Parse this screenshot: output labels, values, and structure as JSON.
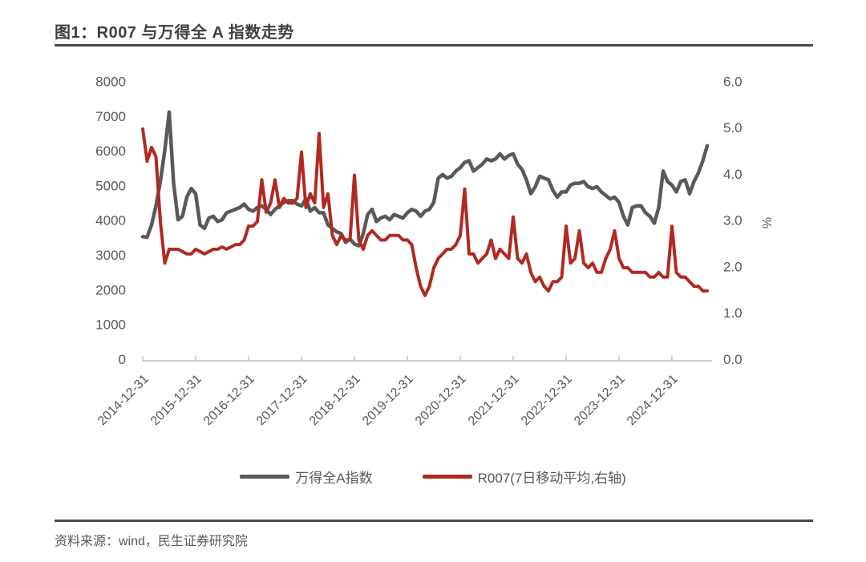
{
  "title": "图1：R007 与万得全 A 指数走势",
  "source": "资料来源：wind，民生证券研究院",
  "colors": {
    "index_line": "#595959",
    "r007_line": "#B02A21",
    "axis_line": "#c0c0c0",
    "axis_text": "#595959",
    "title_text": "#3f3f3f"
  },
  "legend": {
    "items": [
      {
        "label": "万得全A指数",
        "color": "#595959"
      },
      {
        "label": "R007(7日移动平均,右轴)",
        "color": "#B02A21"
      }
    ]
  },
  "chart_data": {
    "type": "line",
    "title": "图1：R007 与万得全 A 指数走势",
    "grid": false,
    "legend_position": "bottom",
    "x_unit": "month",
    "x_start": "2014-12",
    "x_tick_labels": [
      "2014-12-31",
      "2015-12-31",
      "2016-12-31",
      "2017-12-31",
      "2018-12-31",
      "2019-12-31",
      "2020-12-31",
      "2021-12-31",
      "2022-12-31",
      "2023-12-31",
      "2024-12-31"
    ],
    "left_axis": {
      "min": 0,
      "max": 8000,
      "tick_labels": [
        "0",
        "1000",
        "2000",
        "3000",
        "4000",
        "5000",
        "6000",
        "7000",
        "8000"
      ]
    },
    "right_axis": {
      "min": 0,
      "max": 6,
      "label": "%",
      "tick_labels": [
        "0.0",
        "1.0",
        "2.0",
        "3.0",
        "4.0",
        "5.0",
        "6.0"
      ]
    },
    "series": [
      {
        "name": "万得全A指数",
        "axis": "left",
        "color": "#595959",
        "values": [
          3560,
          3550,
          3900,
          4450,
          5150,
          6050,
          7150,
          5100,
          4050,
          4150,
          4700,
          4950,
          4800,
          3900,
          3800,
          4100,
          4150,
          4000,
          4050,
          4250,
          4300,
          4350,
          4400,
          4500,
          4350,
          4300,
          4400,
          4450,
          4350,
          4200,
          4350,
          4450,
          4550,
          4600,
          4600,
          4500,
          4450,
          4650,
          4300,
          4400,
          4250,
          4250,
          3900,
          3800,
          3700,
          3650,
          3400,
          3500,
          3350,
          3300,
          3650,
          4200,
          4350,
          4000,
          4100,
          4150,
          4050,
          4200,
          4150,
          4100,
          4250,
          4350,
          4300,
          4150,
          4300,
          4350,
          4550,
          5250,
          5350,
          5250,
          5300,
          5450,
          5550,
          5700,
          5750,
          5450,
          5550,
          5650,
          5800,
          5750,
          5800,
          5950,
          5800,
          5900,
          5950,
          5650,
          5500,
          5200,
          4800,
          5000,
          5300,
          5250,
          5200,
          4900,
          4700,
          4850,
          4850,
          5050,
          5100,
          5100,
          5150,
          5000,
          4950,
          5000,
          4850,
          4750,
          4650,
          4700,
          4550,
          4150,
          3900,
          4400,
          4450,
          4450,
          4250,
          4150,
          3950,
          4400,
          5450,
          5150,
          5050,
          4850,
          5150,
          5200,
          4800,
          5150,
          5400,
          5750,
          6180
        ]
      },
      {
        "name": "R007(7日移动平均,右轴)",
        "axis": "right",
        "color": "#B02A21",
        "values": [
          5.0,
          4.3,
          4.6,
          4.4,
          3.0,
          2.1,
          2.4,
          2.4,
          2.4,
          2.35,
          2.3,
          2.3,
          2.4,
          2.35,
          2.3,
          2.35,
          2.4,
          2.4,
          2.45,
          2.4,
          2.45,
          2.5,
          2.5,
          2.6,
          2.9,
          2.9,
          3.0,
          3.9,
          3.2,
          3.4,
          3.9,
          3.3,
          3.5,
          3.4,
          3.4,
          3.5,
          4.5,
          3.3,
          3.6,
          3.4,
          4.9,
          3.3,
          3.6,
          2.7,
          2.5,
          2.7,
          2.6,
          2.6,
          4.0,
          2.6,
          2.4,
          2.7,
          2.8,
          2.7,
          2.6,
          2.6,
          2.7,
          2.7,
          2.7,
          2.6,
          2.6,
          2.5,
          2.0,
          1.6,
          1.4,
          1.6,
          2.0,
          2.2,
          2.3,
          2.4,
          2.4,
          2.5,
          2.7,
          3.7,
          2.3,
          2.3,
          2.1,
          2.2,
          2.3,
          2.6,
          2.2,
          2.4,
          2.3,
          2.2,
          3.1,
          2.2,
          2.1,
          2.3,
          1.9,
          1.7,
          1.8,
          1.6,
          1.5,
          1.7,
          1.7,
          1.8,
          2.9,
          2.1,
          2.2,
          2.8,
          2.1,
          2.0,
          2.1,
          1.9,
          1.9,
          2.2,
          2.4,
          2.8,
          2.2,
          2.0,
          2.0,
          1.9,
          1.9,
          1.9,
          1.9,
          1.8,
          1.8,
          1.9,
          1.8,
          1.8,
          2.9,
          1.9,
          1.8,
          1.8,
          1.7,
          1.6,
          1.6,
          1.5,
          1.5
        ]
      }
    ]
  }
}
